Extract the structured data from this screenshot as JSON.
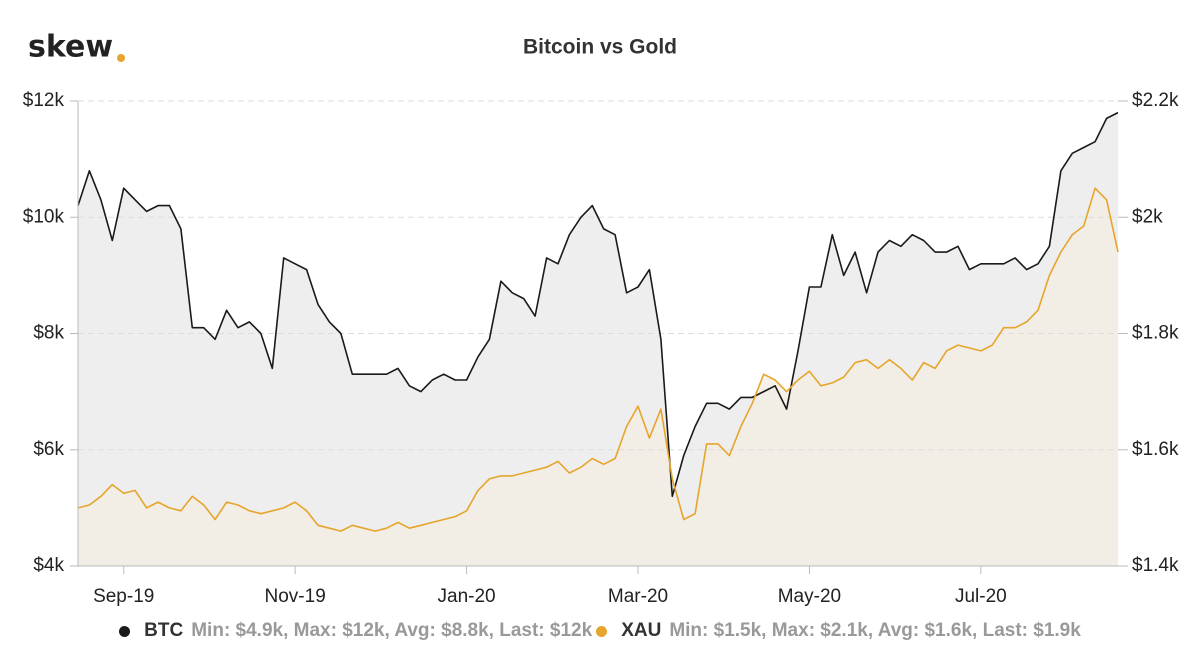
{
  "brand": "skew",
  "chart_data": {
    "type": "line",
    "title": "Bitcoin vs Gold",
    "categories": [
      null,
      null,
      null,
      null,
      "Sep-19",
      null,
      null,
      null,
      null,
      null,
      null,
      null,
      null,
      null,
      null,
      null,
      null,
      null,
      null,
      "Nov-19",
      null,
      null,
      null,
      null,
      null,
      null,
      null,
      null,
      null,
      null,
      null,
      null,
      null,
      null,
      "Jan-20",
      null,
      null,
      null,
      null,
      null,
      null,
      null,
      null,
      null,
      null,
      null,
      null,
      null,
      null,
      "Mar-20",
      null,
      null,
      null,
      null,
      null,
      null,
      null,
      null,
      null,
      null,
      null,
      null,
      null,
      null,
      "May-20",
      null,
      null,
      null,
      null,
      null,
      null,
      null,
      null,
      null,
      null,
      null,
      null,
      null,
      null,
      "Jul-20",
      null,
      null,
      null,
      null,
      null,
      null,
      null,
      null,
      null,
      null,
      null,
      null
    ],
    "series": [
      {
        "name": "BTC",
        "summary": "Min: $4.9k, Max: $12k, Avg: $8.8k, Last: $12k",
        "color": "#1a1a1a",
        "area": "#e8e8e8",
        "values": [
          10200,
          10800,
          10300,
          9600,
          10500,
          10300,
          10100,
          10200,
          10200,
          9800,
          8100,
          8100,
          7900,
          8400,
          8100,
          8200,
          8000,
          7400,
          9300,
          9200,
          9100,
          8500,
          8200,
          8000,
          7300,
          7300,
          7300,
          7300,
          7400,
          7100,
          7000,
          7200,
          7300,
          7200,
          7200,
          7600,
          7900,
          8900,
          8700,
          8600,
          8300,
          9300,
          9200,
          9700,
          10000,
          10200,
          9800,
          9700,
          8700,
          8800,
          9100,
          7900,
          5200,
          5900,
          6400,
          6800,
          6800,
          6700,
          6900,
          6900,
          7000,
          7100,
          6700,
          7700,
          8800,
          8800,
          9700,
          9000,
          9400,
          8700,
          9400,
          9600,
          9500,
          9700,
          9600,
          9400,
          9400,
          9500,
          9100,
          9200,
          9200,
          9200,
          9300,
          9100,
          9200,
          9500,
          10800,
          11100,
          11200,
          11300,
          11700,
          11800
        ]
      },
      {
        "name": "XAU",
        "summary": "Min: $1.5k, Max: $2.1k, Avg: $1.6k, Last: $1.9k",
        "color": "#e6a52c",
        "area": "#f3ece2",
        "axis": "y2",
        "values": [
          1500,
          1505,
          1520,
          1540,
          1525,
          1530,
          1500,
          1510,
          1500,
          1495,
          1520,
          1505,
          1480,
          1510,
          1505,
          1495,
          1490,
          1495,
          1500,
          1510,
          1495,
          1470,
          1465,
          1460,
          1470,
          1465,
          1460,
          1465,
          1475,
          1465,
          1470,
          1475,
          1480,
          1485,
          1495,
          1530,
          1550,
          1555,
          1555,
          1560,
          1565,
          1570,
          1580,
          1560,
          1570,
          1585,
          1575,
          1585,
          1640,
          1675,
          1620,
          1670,
          1550,
          1480,
          1490,
          1610,
          1610,
          1590,
          1640,
          1680,
          1730,
          1720,
          1700,
          1720,
          1735,
          1710,
          1715,
          1725,
          1750,
          1755,
          1740,
          1755,
          1740,
          1720,
          1750,
          1740,
          1770,
          1780,
          1775,
          1770,
          1780,
          1810,
          1810,
          1820,
          1840,
          1900,
          1940,
          1970,
          1985,
          2050,
          2030,
          1940
        ]
      }
    ],
    "ylim": [
      4000,
      12000
    ],
    "yticks": [
      {
        "value": 4000,
        "label": "$4k"
      },
      {
        "value": 6000,
        "label": "$6k"
      },
      {
        "value": 8000,
        "label": "$8k"
      },
      {
        "value": 10000,
        "label": "$10k"
      },
      {
        "value": 12000,
        "label": "$12k"
      }
    ],
    "y2lim": [
      1400,
      2200
    ],
    "y2ticks": [
      {
        "value": 1400,
        "label": "$1.4k"
      },
      {
        "value": 1600,
        "label": "$1.6k"
      },
      {
        "value": 1800,
        "label": "$1.8k"
      },
      {
        "value": 2000,
        "label": "$2k"
      },
      {
        "value": 2200,
        "label": "$2.2k"
      }
    ],
    "grid": true
  }
}
